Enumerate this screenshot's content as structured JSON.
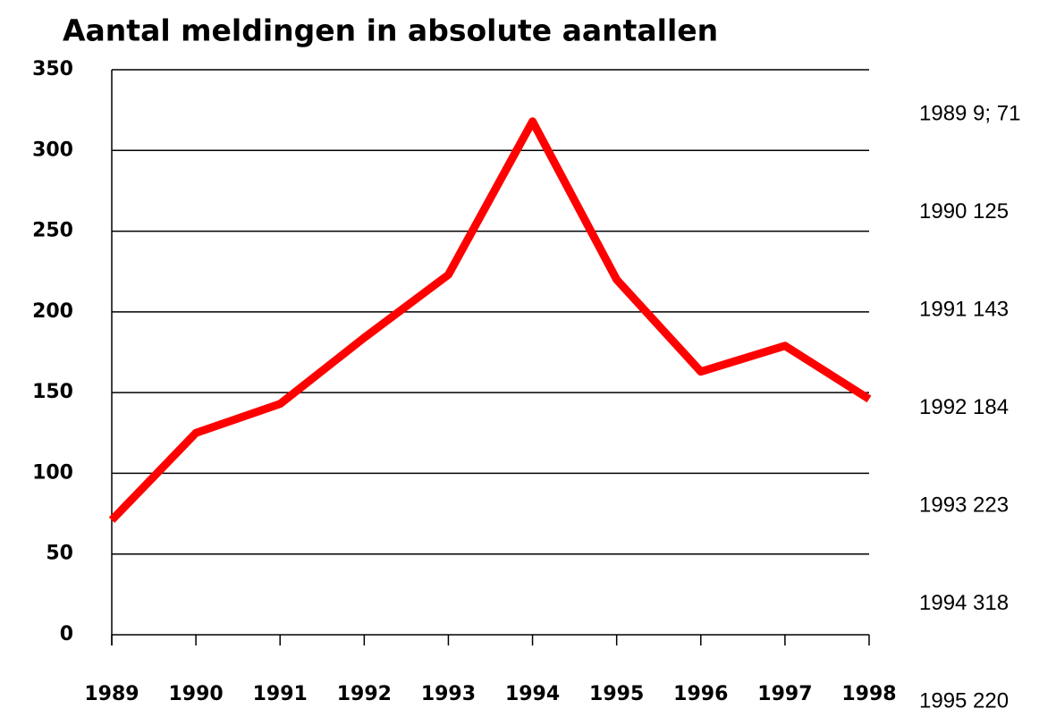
{
  "chart_data": {
    "type": "line",
    "title": "Aantal meldingen in absolute aantallen",
    "categories": [
      "1989",
      "1990",
      "1991",
      "1992",
      "1993",
      "1994",
      "1995",
      "1996",
      "1997",
      "1998"
    ],
    "values": [
      71,
      125,
      143,
      184,
      223,
      318,
      220,
      163,
      179,
      146
    ],
    "color": "#ff0000",
    "ylim": [
      0,
      350
    ],
    "yticks": [
      0,
      50,
      100,
      150,
      200,
      250,
      300,
      350
    ],
    "grid": true,
    "annotations": [
      "1989 9; 71",
      "1990 125",
      "1991 143",
      "1992 184",
      "1993 223",
      "1994 318",
      "1995 220"
    ]
  }
}
